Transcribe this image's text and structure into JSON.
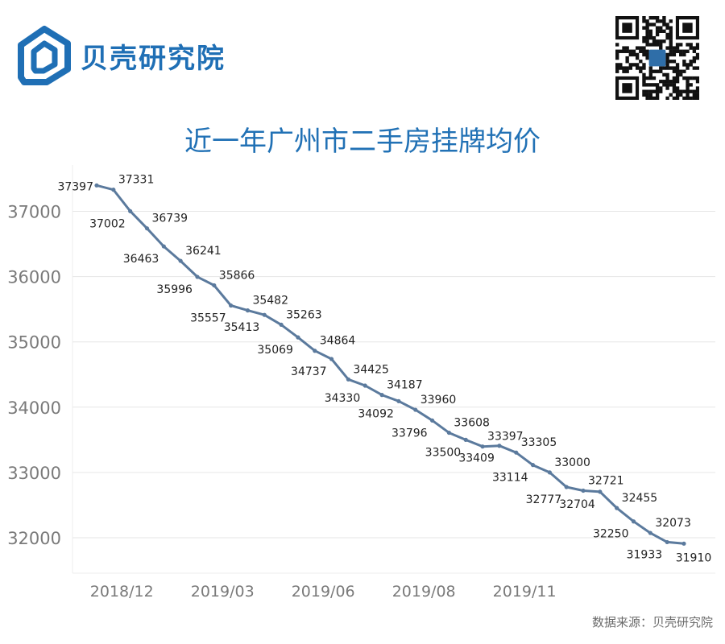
{
  "brand": {
    "name": "贝壳研究院"
  },
  "source_note": "数据来源：贝壳研究院",
  "colors": {
    "line": "#5b7a9d",
    "title": "#2171b5",
    "axis_text": "#7a7a7a",
    "grid": "#e6e6e6"
  },
  "chart_data": {
    "type": "line",
    "title": "近一年广州市二手房挂牌均价",
    "xlabel": "",
    "ylabel": "",
    "ylim": [
      31500,
      37500
    ],
    "yticks": [
      32000,
      33000,
      34000,
      35000,
      36000,
      37000
    ],
    "xticks": [
      "2018/12",
      "2019/03",
      "2019/06",
      "2019/08",
      "2019/11"
    ],
    "grid": true,
    "legend": "none",
    "series": [
      {
        "values": [
          37397,
          37331,
          37002,
          36739,
          36463,
          36241,
          35996,
          35866,
          35557,
          35482,
          35413,
          35263,
          35069,
          34864,
          34737,
          34425,
          34330,
          34187,
          34092,
          33960,
          33796,
          33608,
          33500,
          33397,
          33409,
          33305,
          33114,
          33000,
          32777,
          32721,
          32704,
          32455,
          32250,
          32073,
          31933,
          31910
        ]
      }
    ]
  }
}
